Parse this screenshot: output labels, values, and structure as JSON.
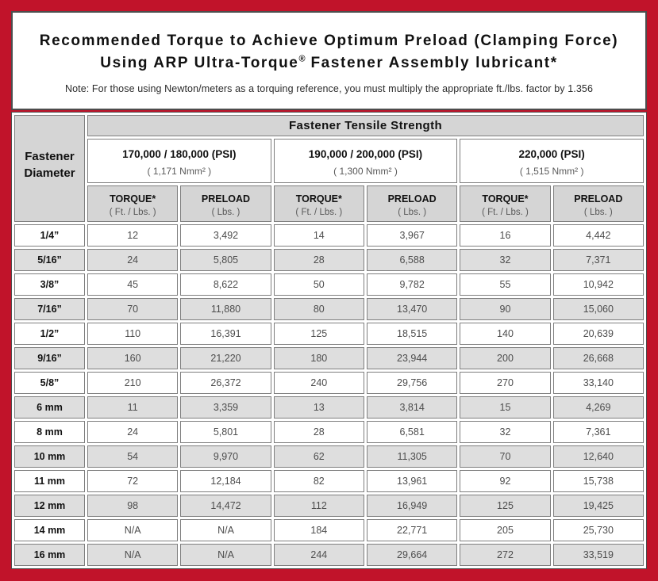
{
  "colors": {
    "border_red": "#c1132a",
    "header_gray": "#d5d5d5",
    "row_alt_gray": "#dedede",
    "row_white": "#ffffff",
    "cell_border_gray": "#7e7e7e",
    "frame_border_dark": "#4d4d4d",
    "value_text_gray": "#4d4d4d"
  },
  "header": {
    "title_line1": "Recommended Torque to Achieve Optimum Preload (Clamping Force)",
    "title_line2_pre": "Using ARP Ultra-Torque",
    "title_line2_reg_mark": "®",
    "title_line2_post": " Fastener Assembly lubricant*",
    "note": "Note: For those using Newton/meters as a torquing reference, you must multiply the appropriate ft./lbs. factor by 1.356"
  },
  "table": {
    "corner_label": "Fastener Diameter",
    "tensile_header": "Fastener Tensile Strength",
    "strength_groups": [
      {
        "psi": "170,000 / 180,000 (PSI)",
        "nmm": "( 1,171 Nmm² )"
      },
      {
        "psi": "190,000 / 200,000 (PSI)",
        "nmm": "( 1,300 Nmm² )"
      },
      {
        "psi": "220,000 (PSI)",
        "nmm": "( 1,515 Nmm² )"
      }
    ],
    "sub_headers": {
      "torque_label": "TORQUE*",
      "torque_unit": "( Ft. / Lbs. )",
      "preload_label": "PRELOAD",
      "preload_unit": "( Lbs. )"
    },
    "rows": [
      {
        "diameter": "1/4”",
        "values": [
          "12",
          "3,492",
          "14",
          "3,967",
          "16",
          "4,442"
        ]
      },
      {
        "diameter": "5/16”",
        "values": [
          "24",
          "5,805",
          "28",
          "6,588",
          "32",
          "7,371"
        ]
      },
      {
        "diameter": "3/8”",
        "values": [
          "45",
          "8,622",
          "50",
          "9,782",
          "55",
          "10,942"
        ]
      },
      {
        "diameter": "7/16”",
        "values": [
          "70",
          "11,880",
          "80",
          "13,470",
          "90",
          "15,060"
        ]
      },
      {
        "diameter": "1/2”",
        "values": [
          "110",
          "16,391",
          "125",
          "18,515",
          "140",
          "20,639"
        ]
      },
      {
        "diameter": "9/16”",
        "values": [
          "160",
          "21,220",
          "180",
          "23,944",
          "200",
          "26,668"
        ]
      },
      {
        "diameter": "5/8”",
        "values": [
          "210",
          "26,372",
          "240",
          "29,756",
          "270",
          "33,140"
        ]
      },
      {
        "diameter": "6 mm",
        "values": [
          "11",
          "3,359",
          "13",
          "3,814",
          "15",
          "4,269"
        ]
      },
      {
        "diameter": "8 mm",
        "values": [
          "24",
          "5,801",
          "28",
          "6,581",
          "32",
          "7,361"
        ]
      },
      {
        "diameter": "10 mm",
        "values": [
          "54",
          "9,970",
          "62",
          "11,305",
          "70",
          "12,640"
        ]
      },
      {
        "diameter": "11 mm",
        "values": [
          "72",
          "12,184",
          "82",
          "13,961",
          "92",
          "15,738"
        ]
      },
      {
        "diameter": "12 mm",
        "values": [
          "98",
          "14,472",
          "112",
          "16,949",
          "125",
          "19,425"
        ]
      },
      {
        "diameter": "14 mm",
        "values": [
          "N/A",
          "N/A",
          "184",
          "22,771",
          "205",
          "25,730"
        ]
      },
      {
        "diameter": "16 mm",
        "values": [
          "N/A",
          "N/A",
          "244",
          "29,664",
          "272",
          "33,519"
        ]
      }
    ]
  }
}
